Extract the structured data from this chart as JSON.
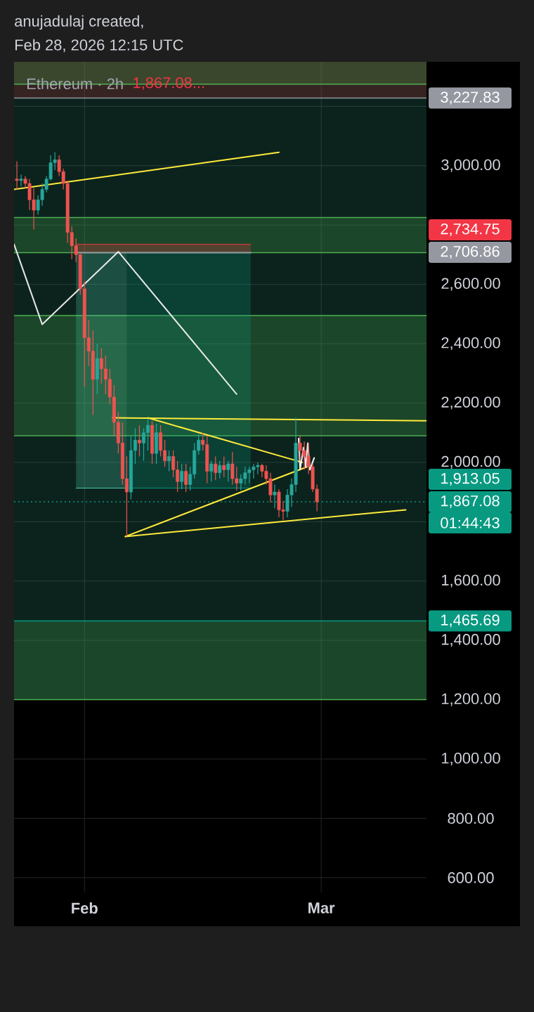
{
  "chart_data": {
    "type": "candlestick",
    "title": "Ethereum · 2h",
    "subtitle": "1,867.08...",
    "annotations": [
      "anujadulaj created,",
      "Feb 28, 2026 12:15 UTC",
      "2,734.75",
      "2,706.86",
      "1,913.05",
      "01:44:43"
    ],
    "xlim": [
      "2026-01-23T16:00",
      "2026-03-13T11:00"
    ],
    "ylim": [
      550,
      3350
    ],
    "xticks": [
      {
        "value": "2026-02-01",
        "label": "Feb"
      },
      {
        "value": "2026-03-01",
        "label": "Mar"
      }
    ],
    "yticks": [
      {
        "value": 600,
        "label": "600.00"
      },
      {
        "value": 800,
        "label": "800.00"
      },
      {
        "value": 1000,
        "label": "1,000.00"
      },
      {
        "value": 1200,
        "label": "1,200.00"
      },
      {
        "value": 1400,
        "label": "1,400.00"
      },
      {
        "value": 1600,
        "label": "1,600.00"
      },
      {
        "value": 1800,
        "label": null
      },
      {
        "value": 2000,
        "label": "2,000.00"
      },
      {
        "value": 2200,
        "label": "2,200.00"
      },
      {
        "value": 2400,
        "label": "2,400.00"
      },
      {
        "value": 2600,
        "label": "2,600.00"
      },
      {
        "value": 2800,
        "label": null
      },
      {
        "value": 3000,
        "label": "3,000.00"
      },
      {
        "value": 3200,
        "label": null
      }
    ],
    "grid": true,
    "bands": [
      {
        "axis": "y",
        "from": 1200,
        "to": 3350,
        "color": "#2e8b74"
      },
      {
        "axis": "y",
        "from": 3227.83,
        "to": 3350,
        "color": "#b22833"
      },
      {
        "axis": "y",
        "from": 3275,
        "to": 3350,
        "color": "#4caf50"
      },
      {
        "axis": "y",
        "from": 2706.86,
        "to": 2825,
        "color": "#4caf50"
      },
      {
        "axis": "y",
        "from": 2090,
        "to": 2495,
        "color": "#4caf50"
      },
      {
        "axis": "y",
        "from": 1200,
        "to": 1465.69,
        "color": "#4caf50"
      }
    ],
    "ref_lines": [
      {
        "axis": "y",
        "value": 3227.83,
        "label": "3,227.83",
        "color": "#9598a1",
        "line_style": "solid"
      },
      {
        "axis": "y",
        "value": 3275,
        "color": "#4caf50"
      },
      {
        "axis": "y",
        "value": 2825,
        "color": "#4caf50"
      },
      {
        "axis": "y",
        "value": 2706.86,
        "color": "#4caf50"
      },
      {
        "axis": "y",
        "value": 2495,
        "color": "#4caf50"
      },
      {
        "axis": "y",
        "value": 2090,
        "color": "#4caf50"
      },
      {
        "axis": "y",
        "value": 1867.08,
        "label": "1,867.08",
        "color": "#089981",
        "line_style": "dotted"
      },
      {
        "axis": "y",
        "value": 1465.69,
        "label": "1,465.69",
        "color": "#089981",
        "line_style": "solid"
      },
      {
        "axis": "y",
        "value": 1200,
        "color": "#4caf50"
      }
    ],
    "series": [
      {
        "x": [
          "2026-01-24T00:00",
          "2026-01-24T12:00",
          "2026-01-25T00:00",
          "2026-01-25T12:00",
          "2026-01-26T00:00",
          "2026-01-26T12:00",
          "2026-01-27T00:00",
          "2026-01-27T12:00",
          "2026-01-28T00:00",
          "2026-01-28T12:00",
          "2026-01-29T00:00",
          "2026-01-29T12:00",
          "2026-01-30T00:00",
          "2026-01-30T12:00",
          "2026-01-31T00:00",
          "2026-01-31T12:00",
          "2026-02-01T00:00",
          "2026-02-01T12:00",
          "2026-02-02T00:00",
          "2026-02-02T12:00",
          "2026-02-03T00:00",
          "2026-02-03T12:00",
          "2026-02-04T00:00",
          "2026-02-04T12:00",
          "2026-02-05T00:00",
          "2026-02-05T12:00",
          "2026-02-06T00:00",
          "2026-02-06T12:00",
          "2026-02-07T00:00",
          "2026-02-07T12:00",
          "2026-02-08T00:00",
          "2026-02-08T12:00",
          "2026-02-09T00:00",
          "2026-02-09T12:00",
          "2026-02-10T00:00",
          "2026-02-10T12:00",
          "2026-02-11T00:00",
          "2026-02-11T12:00",
          "2026-02-12T00:00",
          "2026-02-12T12:00",
          "2026-02-13T00:00",
          "2026-02-13T12:00",
          "2026-02-14T00:00",
          "2026-02-14T12:00",
          "2026-02-15T00:00",
          "2026-02-15T12:00",
          "2026-02-16T00:00",
          "2026-02-16T12:00",
          "2026-02-17T00:00",
          "2026-02-17T12:00",
          "2026-02-18T00:00",
          "2026-02-18T12:00",
          "2026-02-19T00:00",
          "2026-02-19T12:00",
          "2026-02-20T00:00",
          "2026-02-20T12:00",
          "2026-02-21T00:00",
          "2026-02-21T12:00",
          "2026-02-22T00:00",
          "2026-02-22T12:00",
          "2026-02-23T00:00",
          "2026-02-23T12:00",
          "2026-02-24T00:00",
          "2026-02-24T12:00",
          "2026-02-25T00:00",
          "2026-02-25T12:00",
          "2026-02-26T00:00",
          "2026-02-26T12:00",
          "2026-02-27T00:00",
          "2026-02-27T12:00",
          "2026-02-28T00:00",
          "2026-02-28T12:00"
        ],
        "ohlc": [
          [
            2955,
            3015,
            2920,
            2950
          ],
          [
            2950,
            2970,
            2930,
            2955
          ],
          [
            2955,
            2965,
            2925,
            2940
          ],
          [
            2940,
            2955,
            2850,
            2885
          ],
          [
            2885,
            2925,
            2785,
            2850
          ],
          [
            2850,
            2900,
            2835,
            2885
          ],
          [
            2885,
            2940,
            2865,
            2920
          ],
          [
            2920,
            2965,
            2910,
            2955
          ],
          [
            2955,
            3035,
            2950,
            3010
          ],
          [
            3010,
            3045,
            2985,
            3020
          ],
          [
            3020,
            3035,
            2965,
            2980
          ],
          [
            2980,
            2990,
            2920,
            2940
          ],
          [
            2940,
            2950,
            2740,
            2775
          ],
          [
            2775,
            2795,
            2685,
            2730
          ],
          [
            2730,
            2755,
            2675,
            2700
          ],
          [
            2700,
            2705,
            2565,
            2585
          ],
          [
            2585,
            2610,
            2255,
            2420
          ],
          [
            2420,
            2480,
            2325,
            2375
          ],
          [
            2375,
            2445,
            2160,
            2280
          ],
          [
            2280,
            2400,
            2230,
            2350
          ],
          [
            2350,
            2385,
            2265,
            2315
          ],
          [
            2315,
            2360,
            2230,
            2280
          ],
          [
            2280,
            2315,
            2195,
            2220
          ],
          [
            2220,
            2260,
            2090,
            2135
          ],
          [
            2135,
            2170,
            2030,
            2065
          ],
          [
            2065,
            2135,
            1925,
            1945
          ],
          [
            1945,
            2020,
            1750,
            1900
          ],
          [
            1900,
            2090,
            1875,
            2040
          ],
          [
            2040,
            2115,
            1995,
            2075
          ],
          [
            2075,
            2125,
            2020,
            2065
          ],
          [
            2065,
            2115,
            2005,
            2100
          ],
          [
            2100,
            2145,
            2040,
            2125
          ],
          [
            2125,
            2140,
            1995,
            2030
          ],
          [
            2030,
            2130,
            1995,
            2100
          ],
          [
            2100,
            2125,
            2020,
            2040
          ],
          [
            2040,
            2075,
            1985,
            2005
          ],
          [
            2005,
            2040,
            1970,
            2020
          ],
          [
            2020,
            2040,
            1950,
            1975
          ],
          [
            1975,
            2005,
            1900,
            1935
          ],
          [
            1935,
            1995,
            1910,
            1970
          ],
          [
            1970,
            1995,
            1900,
            1925
          ],
          [
            1925,
            1985,
            1905,
            1960
          ],
          [
            1960,
            2065,
            1945,
            2040
          ],
          [
            2040,
            2095,
            2025,
            2075
          ],
          [
            2075,
            2100,
            2040,
            2060
          ],
          [
            2060,
            2090,
            1930,
            1970
          ],
          [
            1970,
            2005,
            1935,
            1995
          ],
          [
            1995,
            2020,
            1940,
            1965
          ],
          [
            1965,
            2005,
            1945,
            1990
          ],
          [
            1990,
            2020,
            1950,
            1975
          ],
          [
            1975,
            2005,
            1935,
            1995
          ],
          [
            1995,
            2035,
            1925,
            1945
          ],
          [
            1945,
            1985,
            1905,
            1930
          ],
          [
            1930,
            1960,
            1905,
            1945
          ],
          [
            1945,
            1985,
            1925,
            1965
          ],
          [
            1965,
            1985,
            1930,
            1975
          ],
          [
            1975,
            1995,
            1945,
            1985
          ],
          [
            1985,
            2000,
            1960,
            1990
          ],
          [
            1990,
            1995,
            1950,
            1970
          ],
          [
            1970,
            1990,
            1925,
            1945
          ],
          [
            1945,
            1965,
            1865,
            1890
          ],
          [
            1890,
            1925,
            1845,
            1900
          ],
          [
            1900,
            1910,
            1815,
            1840
          ],
          [
            1840,
            1870,
            1805,
            1835
          ],
          [
            1835,
            1910,
            1815,
            1890
          ],
          [
            1890,
            1945,
            1850,
            1925
          ],
          [
            1925,
            2150,
            1900,
            2065
          ],
          [
            2065,
            2090,
            2005,
            2040
          ],
          [
            2040,
            2070,
            1975,
            2020
          ],
          [
            2020,
            2065,
            1960,
            1985
          ],
          [
            1985,
            1995,
            1900,
            1910
          ],
          [
            1910,
            1925,
            1835,
            1867.08
          ]
        ],
        "colors": [
          "#ef5350",
          "#26a69a",
          "#ef5350",
          "#ef5350",
          "#ef5350",
          "#26a69a",
          "#26a69a",
          "#26a69a",
          "#26a69a",
          "#26a69a",
          "#ef5350",
          "#ef5350",
          "#ef5350",
          "#ef5350",
          "#ef5350",
          "#ef5350",
          "#ef5350",
          "#ef5350",
          "#ef5350",
          "#26a69a",
          "#ef5350",
          "#ef5350",
          "#ef5350",
          "#ef5350",
          "#ef5350",
          "#ef5350",
          "#ef5350",
          "#26a69a",
          "#26a69a",
          "#ef5350",
          "#26a69a",
          "#26a69a",
          "#ef5350",
          "#26a69a",
          "#ef5350",
          "#ef5350",
          "#26a69a",
          "#ef5350",
          "#ef5350",
          "#26a69a",
          "#ef5350",
          "#26a69a",
          "#26a69a",
          "#26a69a",
          "#ef5350",
          "#ef5350",
          "#26a69a",
          "#ef5350",
          "#26a69a",
          "#ef5350",
          "#26a69a",
          "#ef5350",
          "#ef5350",
          "#26a69a",
          "#26a69a",
          "#26a69a",
          "#26a69a",
          "#26a69a",
          "#ef5350",
          "#ef5350",
          "#ef5350",
          "#26a69a",
          "#ef5350",
          "#ef5350",
          "#26a69a",
          "#26a69a",
          "#26a69a",
          "#ef5350",
          "#ef5350",
          "#ef5350",
          "#ef5350",
          "#ef5350"
        ]
      },
      {
        "type": "line",
        "x": [
          "2026-02-06T00:00",
          "2026-02-20T16:00"
        ],
        "values": [
          1913.05,
          1913.05
        ],
        "lower": [
          1913.05,
          1913.05
        ],
        "upper": [
          2706.86,
          2706.86
        ],
        "color": "#089981"
      },
      {
        "type": "line",
        "x": [
          "2026-01-31T00:00",
          "2026-02-06T00:00"
        ],
        "values": [
          1913.05,
          1913.05
        ],
        "lower": [
          1913.05,
          1913.05
        ],
        "upper": [
          2706.86,
          2706.86
        ],
        "color": "#4dd0b0"
      },
      {
        "type": "line",
        "x": [
          "2026-01-31T00:00",
          "2026-02-20T16:00"
        ],
        "values": [
          2734.75,
          2734.75
        ],
        "lower": [
          2706.86,
          2706.86
        ],
        "upper": [
          2734.75,
          2734.75
        ],
        "color": "#f23645"
      },
      {
        "type": "line",
        "x": [
          "2026-01-31T00:00",
          "2026-02-20T16:00"
        ],
        "values": [
          2706.86,
          2706.86
        ],
        "color": "#9598a1"
      },
      {
        "type": "line",
        "x": [
          "2026-01-23T16:00",
          "2026-02-24T00:00"
        ],
        "values": [
          2920,
          3045
        ],
        "color": "#ffeb3b"
      },
      {
        "type": "line",
        "x": [
          "2026-02-04T08:00",
          "2026-03-13T11:00"
        ],
        "values": [
          2150,
          2140
        ],
        "color": "#ffeb3b"
      },
      {
        "type": "line",
        "x": [
          "2026-02-08T12:00",
          "2026-02-26T18:00"
        ],
        "values": [
          2150,
          2000
        ],
        "color": "#ffeb3b"
      },
      {
        "type": "line",
        "x": [
          "2026-02-05T20:00",
          "2026-02-27T08:00"
        ],
        "values": [
          1750,
          1985
        ],
        "color": "#ffeb3b"
      },
      {
        "type": "line",
        "x": [
          "2026-02-05T20:00",
          "2026-03-11T00:00"
        ],
        "values": [
          1750,
          1840
        ],
        "color": "#ffeb3b"
      },
      {
        "type": "line",
        "x": [
          "2026-01-23T16:00",
          "2026-01-27T00:00",
          "2026-02-05T00:00",
          "2026-02-19T00:00"
        ],
        "values": [
          2735,
          2465,
          2710,
          2230
        ],
        "color": "#e8e8e8"
      },
      {
        "type": "line",
        "x": [
          "2026-02-26T08:00",
          "2026-02-26T12:00",
          "2026-02-26T22:00",
          "2026-02-27T04:00",
          "2026-02-27T10:00",
          "2026-02-27T16:00",
          "2026-02-28T04:00"
        ],
        "values": [
          2080,
          1975,
          2050,
          1985,
          2065,
          1975,
          2015
        ],
        "color": "#f5f5f5"
      }
    ]
  }
}
